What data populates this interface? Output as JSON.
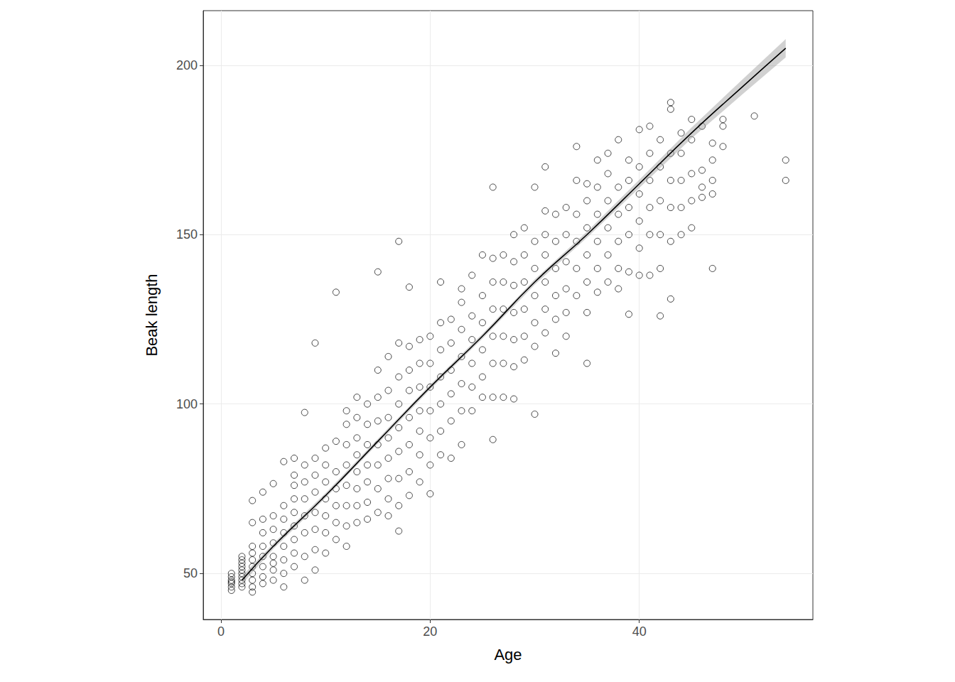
{
  "chart_data": {
    "type": "scatter",
    "x_label": "Age",
    "y_label": "Beak length",
    "marker": "circle",
    "color": "#000000",
    "grid": true,
    "xlim": [
      -1.7,
      56.6
    ],
    "ylim": [
      36.4,
      216.1
    ],
    "xticks": [
      0,
      20,
      40
    ],
    "yticks": [
      50,
      100,
      150,
      200
    ],
    "x": [
      1,
      1,
      1,
      1,
      1,
      1,
      1,
      2,
      2,
      2,
      2,
      2,
      2,
      2,
      2,
      2,
      2,
      3,
      3,
      3,
      3,
      3,
      3,
      3,
      3,
      3,
      3,
      4,
      4,
      4,
      4,
      4,
      4,
      4,
      4,
      5,
      5,
      5,
      5,
      5,
      5,
      5,
      5,
      6,
      6,
      6,
      6,
      6,
      6,
      6,
      6,
      7,
      7,
      7,
      7,
      7,
      7,
      7,
      7,
      7,
      8,
      8,
      8,
      8,
      8,
      8,
      8,
      8,
      9,
      9,
      9,
      9,
      9,
      9,
      9,
      9,
      10,
      10,
      10,
      10,
      10,
      10,
      10,
      11,
      11,
      11,
      11,
      11,
      11,
      11,
      12,
      12,
      12,
      12,
      12,
      12,
      12,
      12,
      13,
      13,
      13,
      13,
      13,
      13,
      13,
      13,
      14,
      14,
      14,
      14,
      14,
      14,
      14,
      15,
      15,
      15,
      15,
      15,
      15,
      15,
      15,
      16,
      16,
      16,
      16,
      16,
      16,
      16,
      16,
      17,
      17,
      17,
      17,
      17,
      17,
      17,
      17,
      17,
      18,
      18,
      18,
      18,
      18,
      18,
      18,
      18,
      19,
      19,
      19,
      19,
      19,
      19,
      19,
      20,
      20,
      20,
      20,
      20,
      20,
      20,
      21,
      21,
      21,
      21,
      21,
      21,
      21,
      22,
      22,
      22,
      22,
      22,
      22,
      23,
      23,
      23,
      23,
      23,
      23,
      23,
      24,
      24,
      24,
      24,
      24,
      24,
      25,
      25,
      25,
      25,
      25,
      25,
      26,
      26,
      26,
      26,
      26,
      26,
      26,
      26,
      27,
      27,
      27,
      27,
      27,
      27,
      28,
      28,
      28,
      28,
      28,
      28,
      28,
      29,
      29,
      29,
      29,
      29,
      29,
      30,
      30,
      30,
      30,
      30,
      30,
      30,
      31,
      31,
      31,
      31,
      31,
      31,
      31,
      32,
      32,
      32,
      32,
      32,
      32,
      33,
      33,
      33,
      33,
      33,
      33,
      34,
      34,
      34,
      34,
      34,
      34,
      35,
      35,
      35,
      35,
      35,
      35,
      35,
      36,
      36,
      36,
      36,
      36,
      36,
      37,
      37,
      37,
      37,
      37,
      37,
      38,
      38,
      38,
      38,
      38,
      38,
      39,
      39,
      39,
      39,
      39,
      39,
      40,
      40,
      40,
      40,
      40,
      40,
      41,
      41,
      41,
      41,
      41,
      41,
      42,
      42,
      42,
      42,
      42,
      42,
      43,
      43,
      43,
      43,
      43,
      43,
      43,
      44,
      44,
      44,
      44,
      44,
      45,
      45,
      45,
      45,
      45,
      46,
      46,
      46,
      46,
      47,
      47,
      47,
      47,
      47,
      48,
      48,
      48,
      51,
      54,
      54
    ],
    "values": [
      45,
      46,
      47,
      48,
      49,
      50,
      47.5,
      46,
      47,
      48,
      49,
      50,
      51,
      52,
      53,
      54,
      55,
      44.5,
      46,
      48,
      50,
      52,
      54,
      56,
      58,
      65,
      71.5,
      47,
      49,
      52,
      55,
      58,
      62,
      66,
      74,
      48,
      51,
      55,
      59,
      63,
      67,
      76.5,
      53,
      46,
      50,
      54,
      58,
      62,
      66,
      70,
      83,
      52,
      56,
      60,
      64,
      68,
      72,
      76,
      79,
      84,
      48,
      55,
      62,
      67,
      72,
      77,
      82,
      97.5,
      51,
      57,
      63,
      68,
      74,
      79,
      84,
      118,
      56,
      62,
      67,
      72,
      77,
      82,
      87,
      60,
      65,
      70,
      75,
      80,
      89,
      133,
      58,
      64,
      70,
      76,
      82,
      88,
      94,
      98,
      65,
      70,
      75,
      80,
      85,
      90,
      96,
      102,
      66,
      71,
      77,
      82,
      88,
      94,
      100,
      68,
      75,
      82,
      88,
      95,
      102,
      110,
      139,
      67,
      72,
      78,
      84,
      90,
      96,
      104,
      114,
      62.5,
      70,
      78,
      86,
      93,
      100,
      108,
      118,
      148,
      73,
      80,
      88,
      96,
      104,
      110,
      117,
      134.5,
      77,
      85,
      92,
      98,
      105,
      112,
      119,
      73.5,
      82,
      90,
      98,
      105,
      112,
      120,
      85,
      92,
      100,
      108,
      116,
      124,
      136,
      84,
      95,
      103,
      110,
      118,
      125,
      88,
      98,
      106,
      114,
      122,
      130,
      134,
      98,
      105,
      112,
      119,
      126,
      138,
      102,
      108,
      116,
      124,
      132,
      144,
      89.5,
      102,
      112,
      120,
      128,
      136,
      143,
      164,
      102,
      112,
      120,
      128,
      136,
      144,
      101.5,
      111,
      119,
      127,
      135,
      142,
      150,
      113,
      120,
      128,
      136,
      144,
      152,
      97,
      117,
      124,
      132,
      140,
      148,
      164,
      121,
      128,
      136,
      144,
      150,
      157,
      170,
      115,
      125,
      132,
      140,
      148,
      156,
      120,
      127,
      134,
      142,
      150,
      158,
      132,
      140,
      148,
      156,
      166,
      176,
      112,
      127,
      136,
      144,
      152,
      160,
      165,
      133,
      140,
      148,
      156,
      164,
      172,
      136,
      144,
      152,
      160,
      168,
      174,
      134,
      140,
      148,
      156,
      164,
      178,
      126.5,
      139,
      150,
      158,
      166,
      172,
      138,
      146,
      154,
      162,
      170,
      181,
      138,
      150,
      158,
      166,
      174,
      182,
      126,
      140,
      150,
      160,
      170,
      178,
      131,
      148,
      158,
      166,
      174,
      189,
      187,
      150,
      158,
      166,
      174,
      180,
      152,
      160,
      168,
      178,
      184,
      161,
      164,
      169,
      182,
      140,
      162,
      166,
      172,
      177,
      176,
      182,
      184,
      185,
      172,
      166
    ],
    "fit": {
      "color": "#000000",
      "band_color": "#999999",
      "x": [
        2,
        5,
        10,
        15,
        20,
        25,
        30,
        35,
        40,
        45,
        50,
        54
      ],
      "values": [
        48,
        58,
        73,
        89,
        105,
        120,
        136,
        150,
        165,
        180,
        194,
        205
      ],
      "lower": [
        46.8,
        57.2,
        72.3,
        88.3,
        104.3,
        119.3,
        135.2,
        149.1,
        163.8,
        178.4,
        191.8,
        202.3
      ],
      "upper": [
        49.2,
        58.8,
        73.7,
        89.7,
        105.7,
        120.7,
        136.8,
        150.9,
        166.2,
        181.6,
        196.2,
        207.7
      ]
    }
  }
}
